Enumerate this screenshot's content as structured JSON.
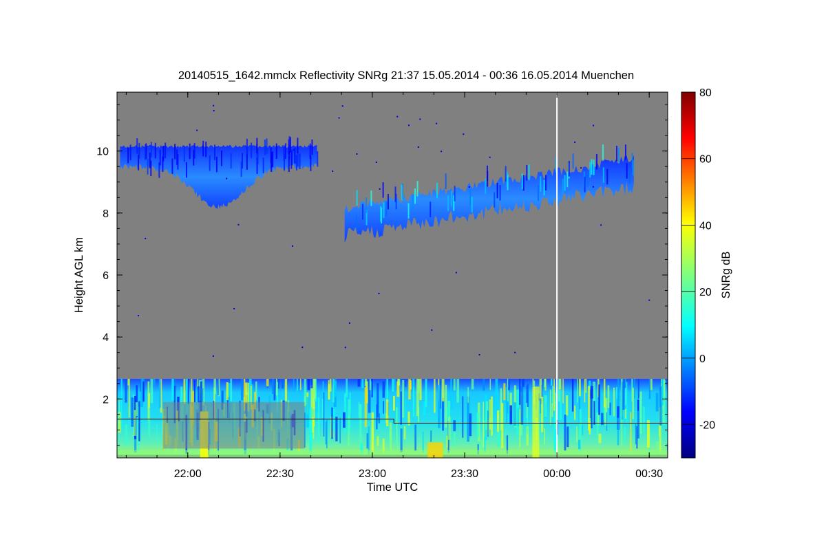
{
  "chart_data": {
    "type": "heatmap",
    "title": "20140515_1642.mmclx Reflectivity SNRg   21:37 15.05.2014 - 00:36 16.05.2014 Muenchen",
    "xlabel": "Time UTC",
    "ylabel": "Height AGL km",
    "colorbar_label": "SNRg dB",
    "x_ticks": [
      "22:00",
      "22:30",
      "23:00",
      "23:30",
      "00:00",
      "00:30"
    ],
    "x_range": [
      "21:37",
      "00:36"
    ],
    "y_ticks": [
      "2",
      "4",
      "6",
      "8",
      "10"
    ],
    "y_range": [
      0.1,
      11.9
    ],
    "colorbar_ticks": [
      "80",
      "60",
      "40",
      "20",
      "0",
      "-20"
    ],
    "colorbar_range": [
      -30,
      80
    ],
    "colormap": "jet",
    "background_color": "#808080",
    "vertical_marker": "00:00",
    "echo_regions": [
      {
        "name": "lower layer",
        "time_start": "21:37",
        "time_end": "00:36",
        "height_base_km": 0.2,
        "height_top_km": 2.65,
        "snr_db_range": [
          -15,
          45
        ]
      },
      {
        "name": "upper cirrus early",
        "time_start": "21:38",
        "time_end": "22:42",
        "height_base_km": 8.2,
        "height_top_km": 10.2,
        "snr_db_range": [
          -20,
          -10
        ]
      },
      {
        "name": "upper cirrus main",
        "time_start": "22:51",
        "time_end": "00:25",
        "height_base_km": 7.0,
        "height_top_km": 9.9,
        "snr_db_range": [
          -20,
          15
        ]
      }
    ],
    "boundary_line": [
      {
        "time": "21:37",
        "height_km": 1.35
      },
      {
        "time": "23:07",
        "height_km": 1.35
      },
      {
        "time": "23:07",
        "height_km": 1.22
      },
      {
        "time": "00:36",
        "height_km": 1.22
      }
    ]
  }
}
